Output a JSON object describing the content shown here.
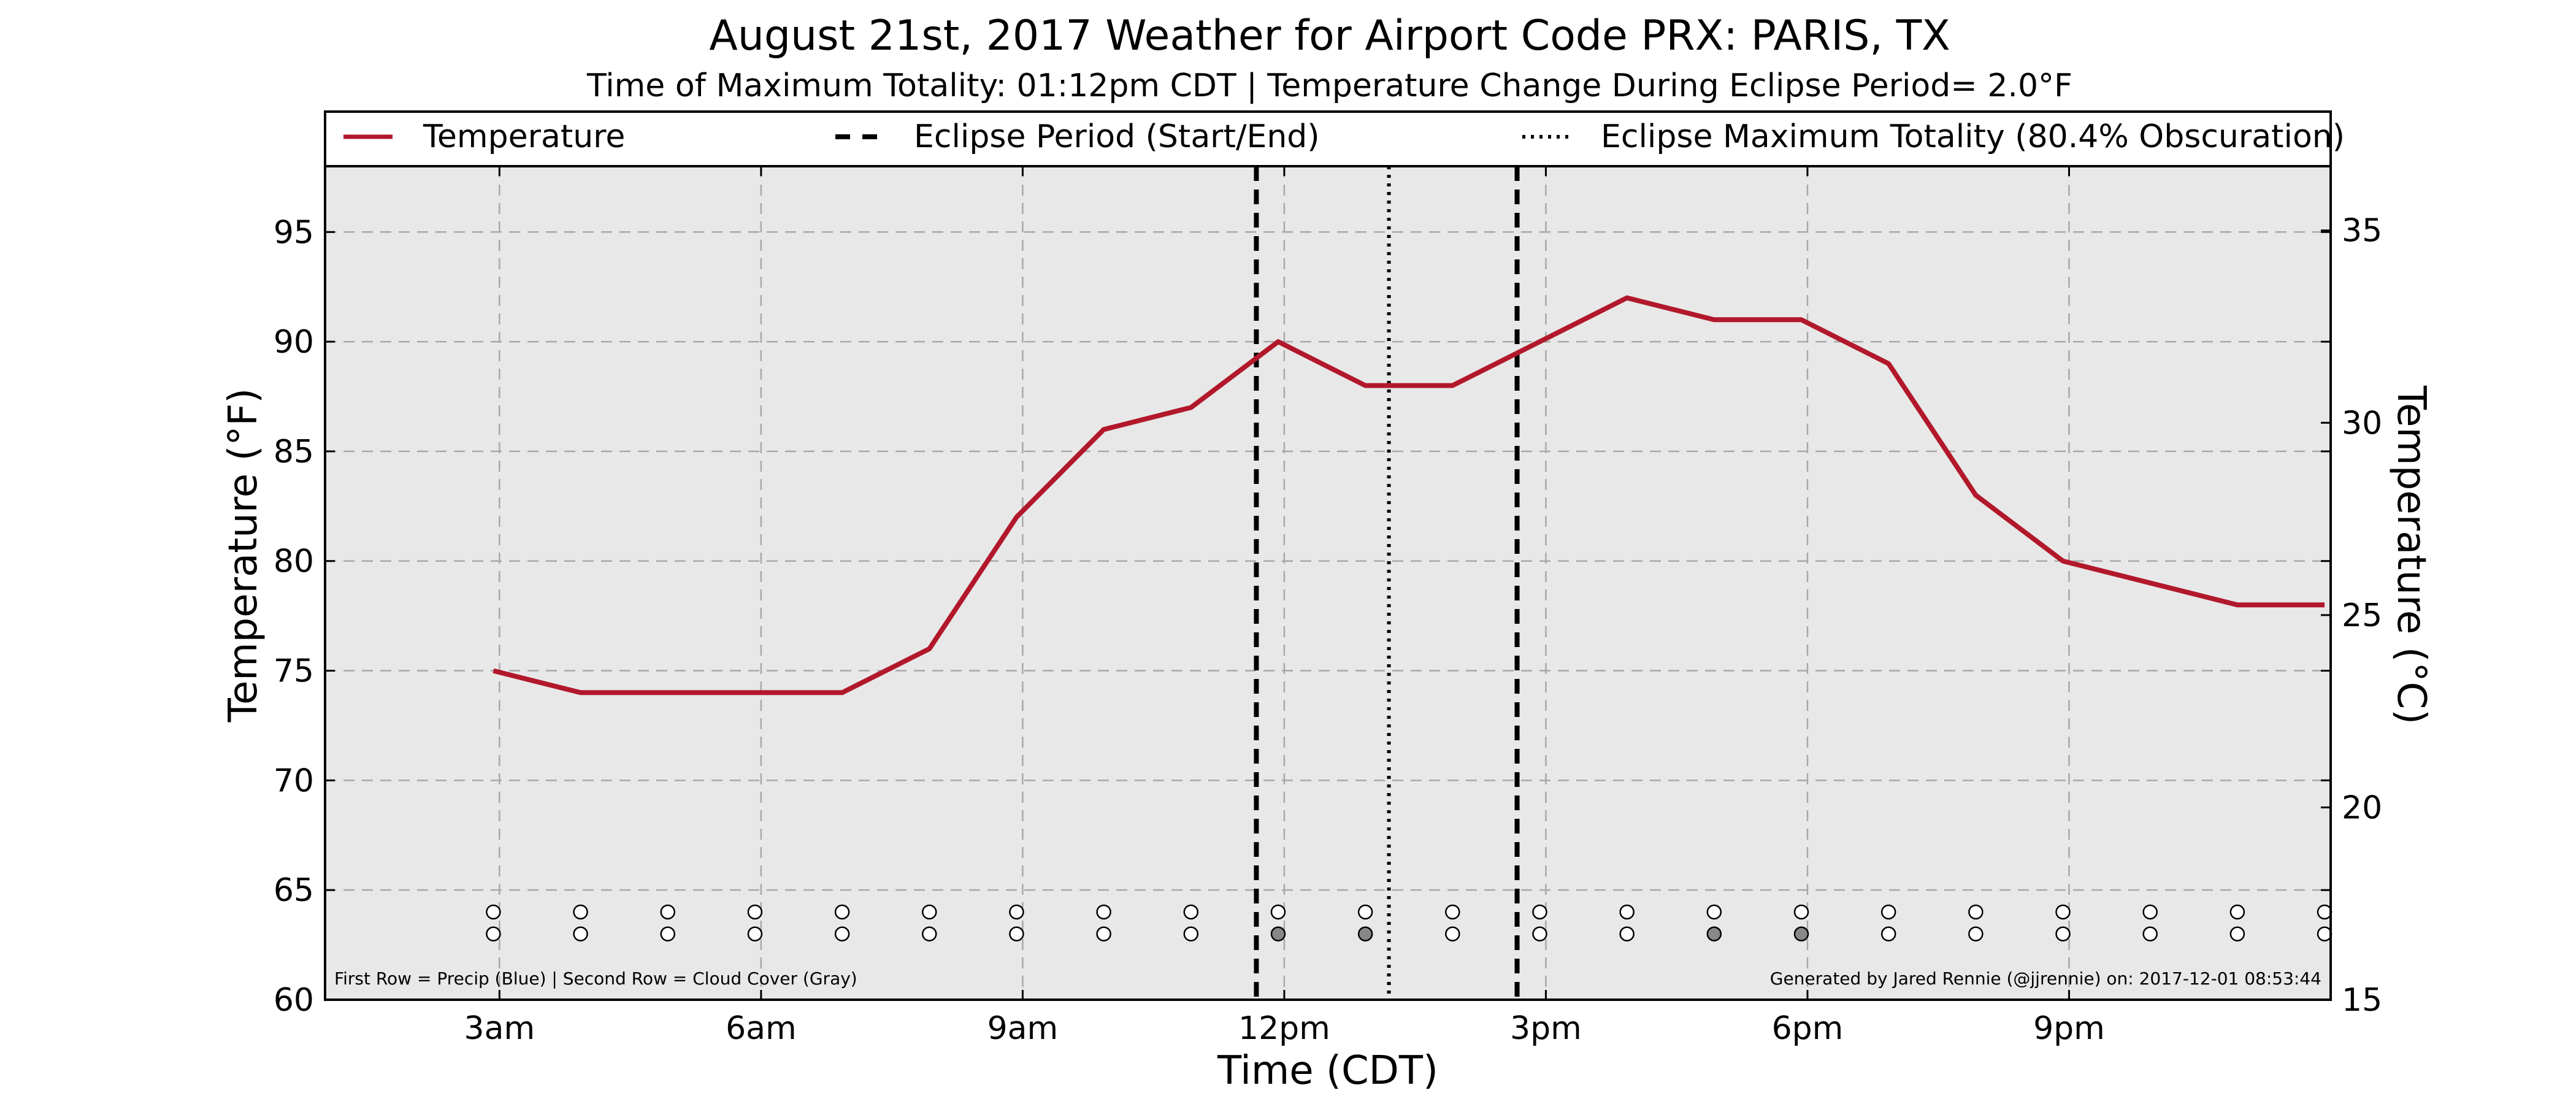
{
  "chart_data": {
    "type": "line",
    "title": "August 21st, 2017 Weather for Airport Code PRX: PARIS, TX",
    "subtitle": "Time of Maximum Totality: 01:12pm CDT | Temperature Change During Eclipse Period= 2.0°F",
    "xlabel": "Time (CDT)",
    "ylabel": "Temperature (°F)",
    "ylabel_right": "Temperature (°C)",
    "xlim_hours": [
      1.0,
      24.0
    ],
    "ylim": [
      60,
      98
    ],
    "ylim_right": [
      15,
      36.67
    ],
    "x_ticks": [
      {
        "hour": 3,
        "label": "3am"
      },
      {
        "hour": 6,
        "label": "6am"
      },
      {
        "hour": 9,
        "label": "9am"
      },
      {
        "hour": 12,
        "label": "12pm"
      },
      {
        "hour": 15,
        "label": "3pm"
      },
      {
        "hour": 18,
        "label": "6pm"
      },
      {
        "hour": 21,
        "label": "9pm"
      }
    ],
    "y_ticks": [
      60,
      65,
      70,
      75,
      80,
      85,
      90,
      95
    ],
    "y_ticks_right": [
      15,
      20,
      25,
      30,
      35
    ],
    "grid": true,
    "legend_position": "top",
    "legend": [
      {
        "label": "Temperature",
        "style": "solid",
        "color": "#b2182b"
      },
      {
        "label": "Eclipse Period (Start/End)",
        "style": "dashed",
        "color": "#000000"
      },
      {
        "label": "Eclipse Maximum Totality (80.4% Obscuration)",
        "style": "dotted",
        "color": "#000000"
      }
    ],
    "series": [
      {
        "name": "Temperature",
        "color": "#b2182b",
        "x_hours": [
          2.93,
          3.93,
          4.93,
          5.93,
          6.93,
          7.93,
          8.93,
          9.93,
          10.93,
          11.93,
          12.93,
          13.93,
          14.93,
          15.93,
          16.93,
          17.93,
          18.93,
          19.93,
          20.93,
          21.93,
          22.93,
          23.93
        ],
        "values": [
          75,
          74,
          74,
          74,
          74,
          76,
          82,
          86,
          87,
          90,
          88,
          88,
          90,
          92,
          91,
          91,
          89,
          83,
          80,
          79,
          78,
          78
        ]
      }
    ],
    "eclipse_start_hour": 11.68,
    "eclipse_end_hour": 14.67,
    "eclipse_max_hour": 13.2,
    "precip_row_y": 64,
    "cloud_row_y": 63,
    "marker_hours": [
      2.93,
      3.93,
      4.93,
      5.93,
      6.93,
      7.93,
      8.93,
      9.93,
      10.93,
      11.93,
      12.93,
      13.93,
      14.93,
      15.93,
      16.93,
      17.93,
      18.93,
      19.93,
      20.93,
      21.93,
      22.93,
      23.93
    ],
    "precip_filled": [
      false,
      false,
      false,
      false,
      false,
      false,
      false,
      false,
      false,
      false,
      false,
      false,
      false,
      false,
      false,
      false,
      false,
      false,
      false,
      false,
      false,
      false
    ],
    "cloud_filled": [
      false,
      false,
      false,
      false,
      false,
      false,
      false,
      false,
      false,
      true,
      true,
      false,
      false,
      false,
      true,
      true,
      false,
      false,
      false,
      false,
      false,
      false
    ],
    "footnote_left": "First Row = Precip (Blue) | Second Row = Cloud Cover (Gray)",
    "footnote_right": "Generated by Jared Rennie (@jjrennie) on: 2017-12-01 08:53:44",
    "colors": {
      "plot_background": "#e8e8e8",
      "line": "#b2182b",
      "grid": "#a8a8a8",
      "cloud_fill": "#888888",
      "marker_empty": "#ffffff"
    }
  }
}
